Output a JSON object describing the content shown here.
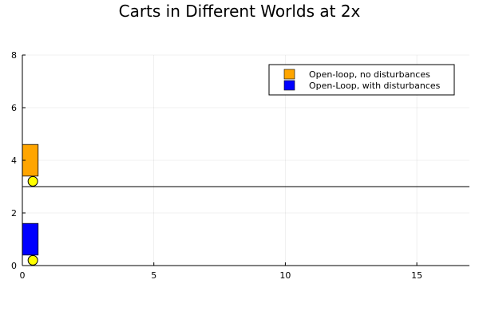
{
  "chart_data": {
    "type": "scatter",
    "title": "Carts in Different Worlds at 2x",
    "xlabel": "",
    "ylabel": "",
    "xlim": [
      0,
      17
    ],
    "ylim": [
      0,
      8
    ],
    "x_ticks": [
      0,
      5,
      10,
      15
    ],
    "y_ticks": [
      0,
      2,
      4,
      6,
      8
    ],
    "grid": true,
    "legend_position": "top-right",
    "separator_line_y": 3,
    "series": [
      {
        "name": "Open-loop, no disturbances",
        "color": "#FFA500",
        "cart": {
          "x_min": 0,
          "x_max": 0.6,
          "y_min": 3.4,
          "y_max": 4.6
        },
        "wheel": {
          "x": 0.4,
          "y": 3.2
        }
      },
      {
        "name": "Open-Loop, with disturbances",
        "color": "#0000FF",
        "cart": {
          "x_min": 0,
          "x_max": 0.6,
          "y_min": 0.4,
          "y_max": 1.6
        },
        "wheel": {
          "x": 0.4,
          "y": 0.2
        }
      }
    ],
    "wheel_color": "#FFFF00"
  }
}
